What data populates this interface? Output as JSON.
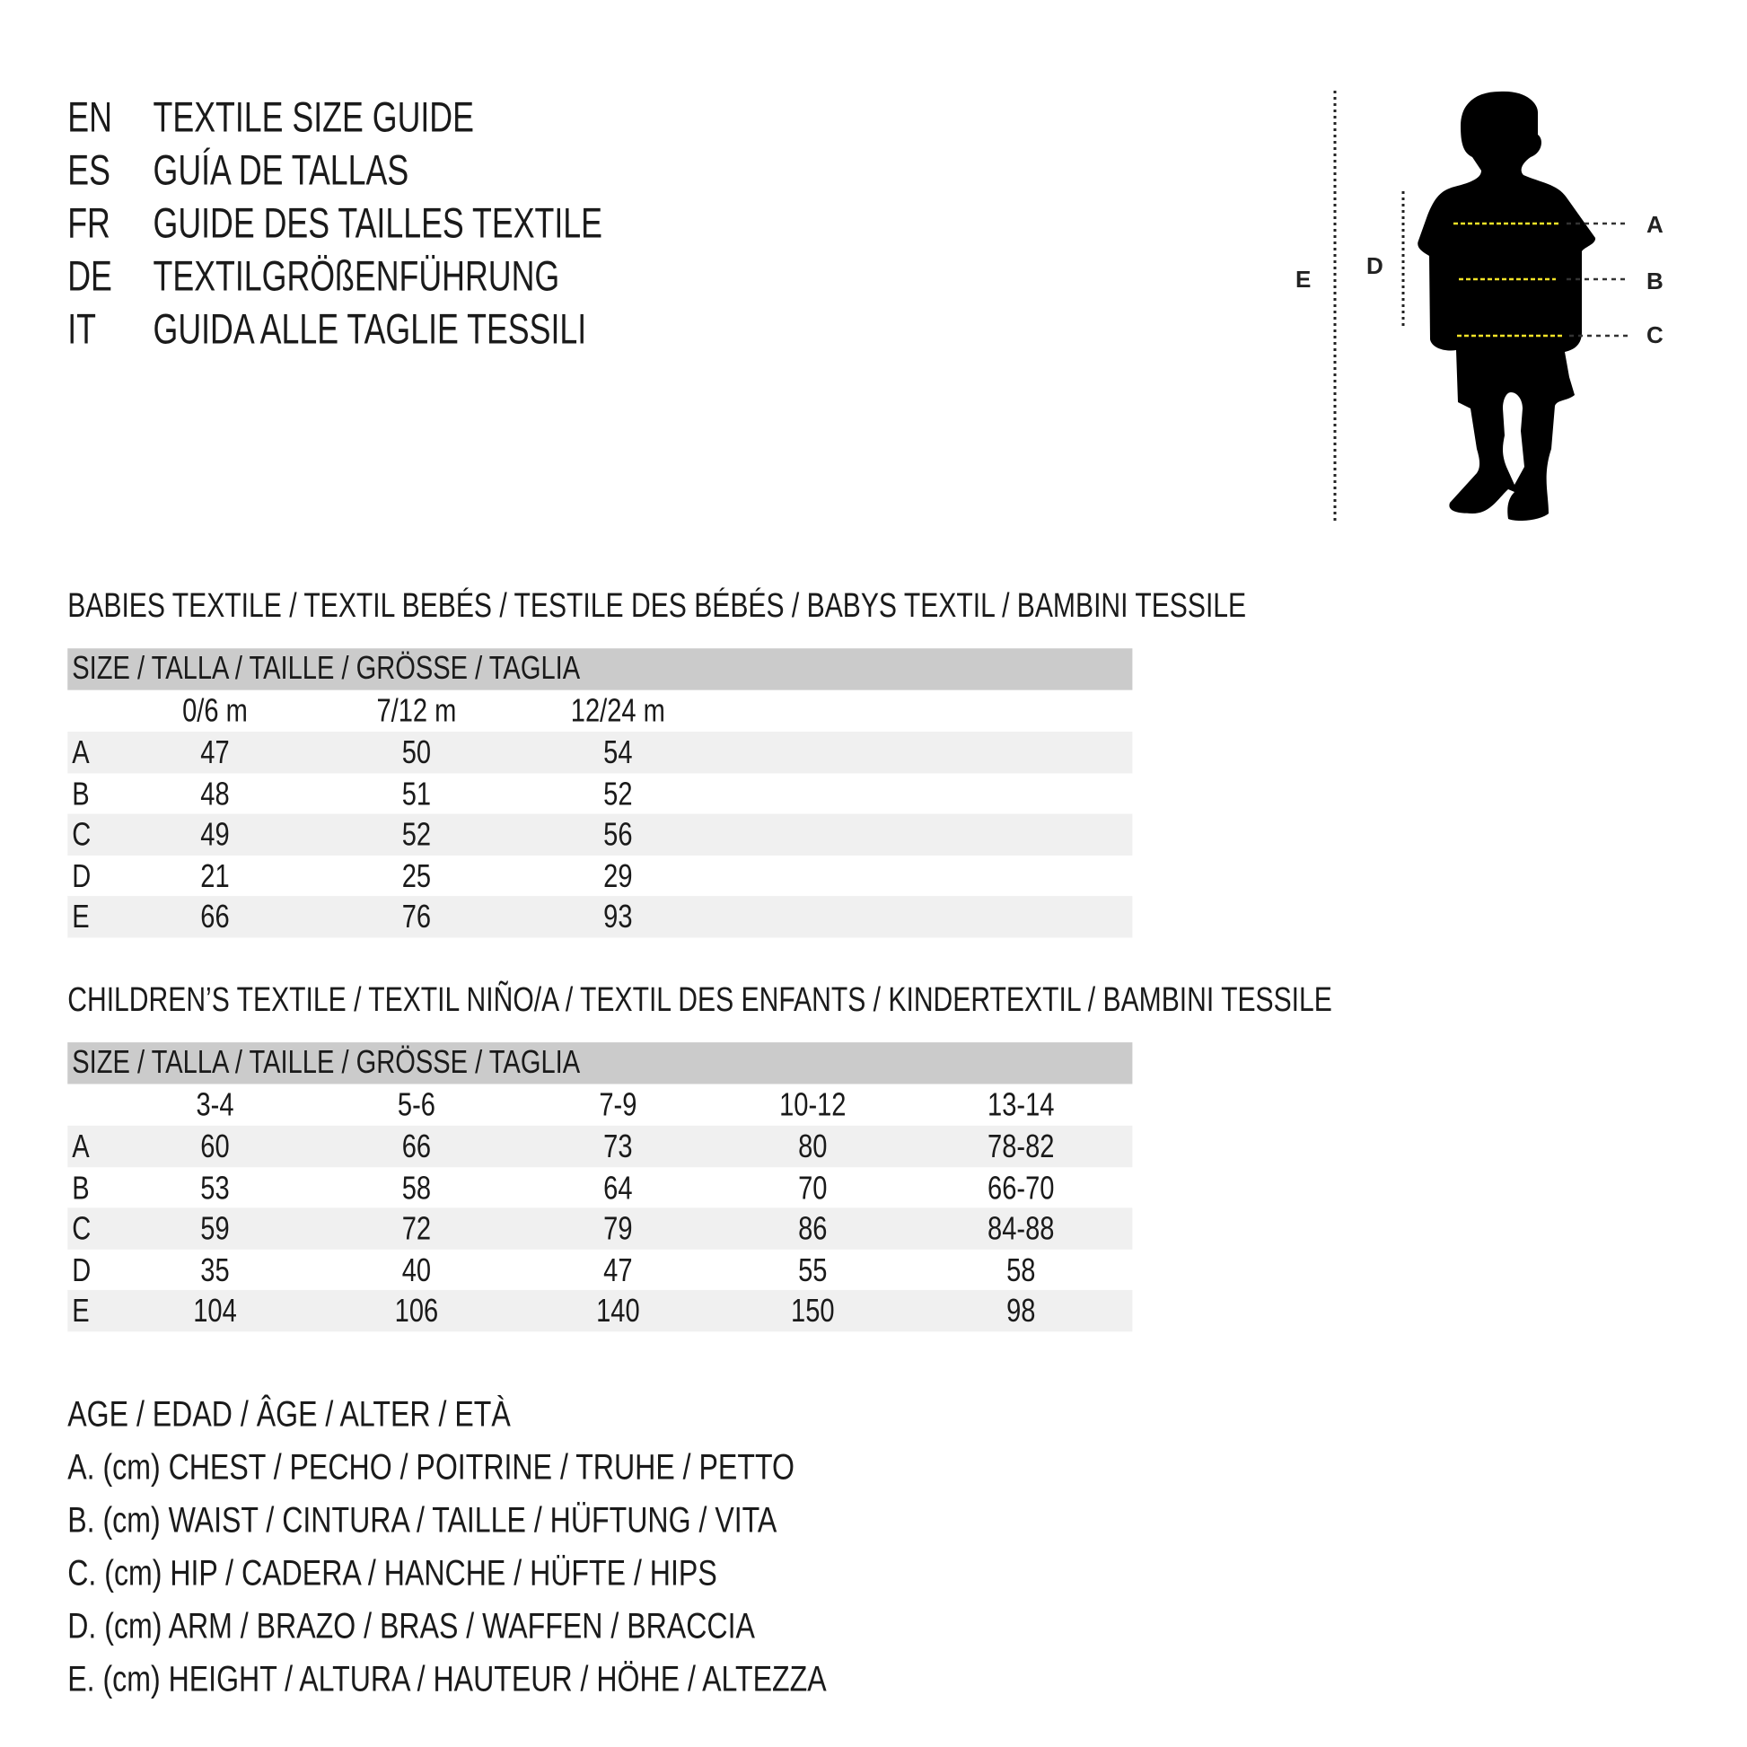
{
  "header": [
    {
      "code": "EN",
      "title": "TEXTILE SIZE GUIDE"
    },
    {
      "code": "ES",
      "title": "GUÍA DE TALLAS"
    },
    {
      "code": "FR",
      "title": "GUIDE DES TAILLES TEXTILE"
    },
    {
      "code": "DE",
      "title": "TEXTILGRÖßENFÜHRUNG"
    },
    {
      "code": "IT",
      "title": "GUIDA ALLE TAGLIE TESSILI"
    }
  ],
  "figure": {
    "labels": {
      "A": "A",
      "B": "B",
      "C": "C",
      "D": "D",
      "E": "E"
    },
    "guide_color": "#f2e227",
    "silhouette_color": "#000000"
  },
  "babies": {
    "title": "BABIES TEXTILE / TEXTIL BEBÉS / TESTILE DES BÉBÉS / BABYS TEXTIL / BAMBINI TESSILE",
    "size_header": "SIZE / TALLA / TAILLE / GRÖSSE / TAGLIA",
    "columns": [
      "0/6 m",
      "7/12 m",
      "12/24 m"
    ],
    "rows": [
      {
        "label": "A",
        "values": [
          "47",
          "50",
          "54"
        ]
      },
      {
        "label": "B",
        "values": [
          "48",
          "51",
          "52"
        ]
      },
      {
        "label": "C",
        "values": [
          "49",
          "52",
          "56"
        ]
      },
      {
        "label": "D",
        "values": [
          "21",
          "25",
          "29"
        ]
      },
      {
        "label": "E",
        "values": [
          "66",
          "76",
          "93"
        ]
      }
    ]
  },
  "children": {
    "title": "CHILDREN’S TEXTILE / TEXTIL NIÑO/A / TEXTIL DES ENFANTS / KINDERTEXTIL / BAMBINI TESSILE",
    "size_header": "SIZE / TALLA / TAILLE / GRÖSSE / TAGLIA",
    "columns": [
      "3-4",
      "5-6",
      "7-9",
      "10-12",
      "13-14"
    ],
    "rows": [
      {
        "label": "A",
        "values": [
          "60",
          "66",
          "73",
          "80",
          "78-82"
        ]
      },
      {
        "label": "B",
        "values": [
          "53",
          "58",
          "64",
          "70",
          "66-70"
        ]
      },
      {
        "label": "C",
        "values": [
          "59",
          "72",
          "79",
          "86",
          "84-88"
        ]
      },
      {
        "label": "D",
        "values": [
          "35",
          "40",
          "47",
          "55",
          "58"
        ]
      },
      {
        "label": "E",
        "values": [
          "104",
          "106",
          "140",
          "150",
          "98"
        ]
      }
    ]
  },
  "legend": [
    "AGE / EDAD / ÂGE / ALTER / ETÀ",
    "A. (cm) CHEST / PECHO / POITRINE / TRUHE / PETTO",
    "B. (cm) WAIST / CINTURA / TAILLE / HÜFTUNG / VITA",
    "C. (cm) HIP / CADERA / HANCHE / HÜFTE / HIPS",
    "D. (cm) ARM / BRAZO / BRAS / WAFFEN / BRACCIA",
    "E. (cm) HEIGHT / ALTURA / HAUTEUR / HÖHE / ALTEZZA"
  ]
}
